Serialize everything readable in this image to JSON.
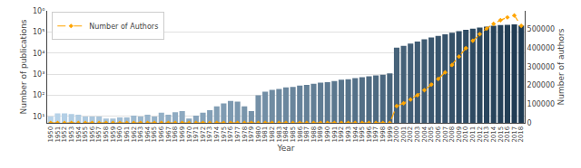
{
  "chart_data": {
    "type": "bar",
    "xlabel": "Year",
    "ylabel": "Number of publications",
    "y2label": "Number of authors",
    "x": [
      1950,
      1951,
      1952,
      1953,
      1954,
      1955,
      1956,
      1957,
      1958,
      1959,
      1960,
      1961,
      1962,
      1963,
      1964,
      1965,
      1966,
      1967,
      1968,
      1969,
      1970,
      1971,
      1972,
      1973,
      1974,
      1975,
      1976,
      1977,
      1978,
      1979,
      1980,
      1981,
      1982,
      1983,
      1984,
      1985,
      1986,
      1987,
      1988,
      1989,
      1990,
      1991,
      1992,
      1993,
      1994,
      1995,
      1996,
      1997,
      1998,
      1999,
      2000,
      2001,
      2002,
      2003,
      2004,
      2005,
      2006,
      2007,
      2008,
      2009,
      2010,
      2011,
      2012,
      2013,
      2014,
      2015,
      2016,
      2017,
      2018
    ],
    "xlim": [
      1949.5,
      2018.5
    ],
    "xticks": [
      1950,
      1951,
      1952,
      1953,
      1954,
      1955,
      1956,
      1957,
      1958,
      1959,
      1960,
      1961,
      1962,
      1963,
      1964,
      1965,
      1966,
      1967,
      1968,
      1969,
      1970,
      1971,
      1972,
      1973,
      1974,
      1975,
      1976,
      1977,
      1978,
      1979,
      1980,
      1981,
      1982,
      1983,
      1984,
      1985,
      1986,
      1987,
      1988,
      1989,
      1990,
      1991,
      1992,
      1993,
      1994,
      1995,
      1996,
      1997,
      1998,
      1999,
      2000,
      2001,
      2002,
      2003,
      2004,
      2005,
      2006,
      2007,
      2008,
      2009,
      2010,
      2011,
      2012,
      2013,
      2014,
      2015,
      2016,
      2017,
      2018
    ],
    "log": "y",
    "ylim": [
      5,
      1000000
    ],
    "yticks": [
      {
        "value": 10,
        "label": "10¹"
      },
      {
        "value": 100,
        "label": "10²"
      },
      {
        "value": 1000,
        "label": "10³"
      },
      {
        "value": 10000,
        "label": "10⁴"
      },
      {
        "value": 100000,
        "label": "10⁵"
      },
      {
        "value": 1000000,
        "label": "10⁶"
      }
    ],
    "y2lim": [
      0,
      600000
    ],
    "y2ticks": [
      0,
      100000,
      200000,
      300000,
      400000,
      500000
    ],
    "grid": "y",
    "legend": "upper left",
    "series": [
      {
        "type": "bar",
        "colors": [
          "#b8d4ea",
          "#b6d2e8",
          "#b3cfe6",
          "#b1cde3",
          "#afcbe1",
          "#adc9df",
          "#aac6dd",
          "#a8c4da",
          "#a6c2d8",
          "#a4c0d6",
          "#a1bdd4",
          "#9fbbd1",
          "#9db9cf",
          "#9bb7cd",
          "#98b4cb",
          "#96b2c8",
          "#94b0c6",
          "#92aec4",
          "#8fabc2",
          "#8da9c0",
          "#8ba7bd",
          "#88a4bb",
          "#86a2b9",
          "#84a0b7",
          "#829eb4",
          "#7f9bb2",
          "#7d99b0",
          "#7b97ae",
          "#7995ab",
          "#7692a9",
          "#7490a7",
          "#728ea5",
          "#708ca2",
          "#6d89a0",
          "#6b879e",
          "#69859c",
          "#66829a",
          "#648097",
          "#627e95",
          "#607c93",
          "#5d7991",
          "#5b778e",
          "#59758c",
          "#57738a",
          "#547088",
          "#526e85",
          "#506c83",
          "#4e6a81",
          "#4b677f",
          "#49657c",
          "#47637a",
          "#456178",
          "#425e76",
          "#405c74",
          "#3e5a71",
          "#3b576f",
          "#39556d",
          "#37536b",
          "#355168",
          "#324e66",
          "#304c64",
          "#2e4a62",
          "#2c485f",
          "#29455d",
          "#27435b",
          "#254159",
          "#233f56",
          "#203c54",
          "#1e3a52"
        ],
        "values": [
          10,
          14,
          14,
          13,
          12,
          10,
          10,
          10,
          8,
          8,
          9,
          9,
          11,
          10,
          12,
          10,
          15,
          12,
          16,
          18,
          8,
          11,
          15,
          20,
          30,
          42,
          55,
          50,
          30,
          18,
          100,
          150,
          180,
          200,
          240,
          250,
          290,
          310,
          350,
          400,
          420,
          480,
          550,
          580,
          650,
          720,
          790,
          870,
          950,
          1100,
          18000,
          22000,
          28000,
          35000,
          45000,
          55000,
          65000,
          78000,
          92000,
          108000,
          125000,
          142000,
          162000,
          178000,
          195000,
          210000,
          220000,
          230000,
          200000
        ]
      },
      {
        "type": "line",
        "name": "Number of Authors",
        "axis": "y2",
        "color": "#FFA500",
        "marker": "diamond",
        "line_style": "dashed",
        "values": [
          5,
          5,
          5,
          5,
          5,
          5,
          5,
          5,
          5,
          5,
          5,
          5,
          5,
          5,
          5,
          5,
          5,
          5,
          5,
          5,
          5,
          5,
          5,
          5,
          5,
          5,
          5,
          5,
          5,
          5,
          5,
          5,
          5,
          5,
          5,
          5,
          5,
          5,
          5,
          5,
          5,
          5,
          5,
          5,
          5,
          5,
          5,
          5,
          5,
          5,
          90000,
          105000,
          125000,
          148000,
          175000,
          205000,
          235000,
          270000,
          310000,
          355000,
          400000,
          440000,
          475000,
          505000,
          530000,
          550000,
          565000,
          575000,
          520000
        ]
      }
    ]
  }
}
